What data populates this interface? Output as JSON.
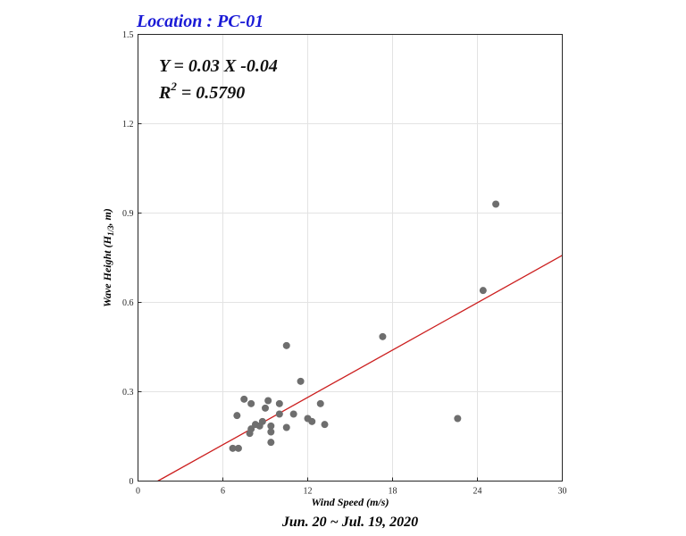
{
  "chart_data": {
    "type": "scatter",
    "title": "Location : PC-01",
    "title_color": "#1a1ad6",
    "xlabel": "Wind Speed (m/s)",
    "ylabel_parts": [
      "Wave Height (H",
      "1/3",
      ", m)"
    ],
    "xlim": [
      0,
      30
    ],
    "ylim": [
      0,
      1.5
    ],
    "x_ticks": [
      0,
      6,
      12,
      18,
      24,
      30
    ],
    "y_ticks": [
      0,
      0.3,
      0.6,
      0.9,
      1.2,
      1.5
    ],
    "grid": true,
    "equation": "Y = 0.03 X -0.04",
    "r2_label": "R",
    "r2_exp": "2",
    "r2_value": " = 0.5790",
    "period": "Jun. 20 ~ Jul. 19,  2020",
    "marker_color": "#6e6e6e",
    "fit_color": "#cc1f1f",
    "fit_line": {
      "slope": 0.0265,
      "intercept": -0.037
    },
    "points": [
      {
        "x": 6.7,
        "y": 0.11
      },
      {
        "x": 7.1,
        "y": 0.11
      },
      {
        "x": 7.0,
        "y": 0.22
      },
      {
        "x": 7.5,
        "y": 0.275
      },
      {
        "x": 8.0,
        "y": 0.26
      },
      {
        "x": 7.9,
        "y": 0.16
      },
      {
        "x": 8.0,
        "y": 0.175
      },
      {
        "x": 8.3,
        "y": 0.19
      },
      {
        "x": 8.6,
        "y": 0.185
      },
      {
        "x": 8.8,
        "y": 0.2
      },
      {
        "x": 9.0,
        "y": 0.245
      },
      {
        "x": 9.2,
        "y": 0.27
      },
      {
        "x": 9.4,
        "y": 0.185
      },
      {
        "x": 9.4,
        "y": 0.165
      },
      {
        "x": 9.4,
        "y": 0.13
      },
      {
        "x": 10.0,
        "y": 0.26
      },
      {
        "x": 10.0,
        "y": 0.225
      },
      {
        "x": 10.5,
        "y": 0.455
      },
      {
        "x": 10.5,
        "y": 0.18
      },
      {
        "x": 11.0,
        "y": 0.225
      },
      {
        "x": 11.5,
        "y": 0.335
      },
      {
        "x": 12.0,
        "y": 0.21
      },
      {
        "x": 12.3,
        "y": 0.2
      },
      {
        "x": 12.9,
        "y": 0.26
      },
      {
        "x": 13.2,
        "y": 0.19
      },
      {
        "x": 17.3,
        "y": 0.485
      },
      {
        "x": 22.6,
        "y": 0.21
      },
      {
        "x": 24.4,
        "y": 0.64
      },
      {
        "x": 25.3,
        "y": 0.93
      }
    ]
  }
}
